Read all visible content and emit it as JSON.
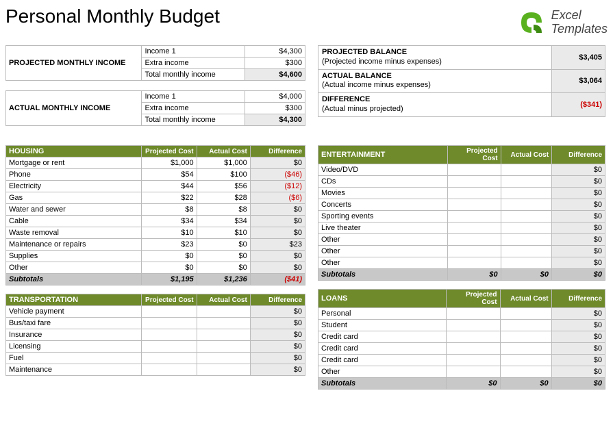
{
  "title": "Personal Monthly Budget",
  "logo": {
    "line1": "Excel",
    "line2": "Templates",
    "icon_color": "#5ab120"
  },
  "colors": {
    "category_header_bg": "#6e8a2a",
    "category_header_fg": "#ffffff",
    "diff_shade": "#eaeaea",
    "subtotal_bg": "#c8c8c8",
    "negative": "#cc0000",
    "border": "#bbbbbb"
  },
  "income": {
    "projected": {
      "label": "PROJECTED MONTHLY INCOME",
      "rows": [
        {
          "name": "Income 1",
          "value": "$4,300"
        },
        {
          "name": "Extra income",
          "value": "$300"
        }
      ],
      "total_label": "Total monthly income",
      "total_value": "$4,600"
    },
    "actual": {
      "label": "ACTUAL MONTHLY INCOME",
      "rows": [
        {
          "name": "Income 1",
          "value": "$4,000"
        },
        {
          "name": "Extra income",
          "value": "$300"
        }
      ],
      "total_label": "Total monthly income",
      "total_value": "$4,300"
    }
  },
  "balance": {
    "projected": {
      "label": "PROJECTED BALANCE",
      "sub": "(Projected income minus expenses)",
      "value": "$3,405"
    },
    "actual": {
      "label": "ACTUAL BALANCE",
      "sub": "(Actual income minus expenses)",
      "value": "$3,064"
    },
    "difference": {
      "label": "DIFFERENCE",
      "sub": "(Actual minus projected)",
      "value": "($341)",
      "negative": true
    }
  },
  "column_headers": {
    "projected": "Projected Cost",
    "actual": "Actual Cost",
    "difference": "Difference"
  },
  "categories_left": [
    {
      "name": "HOUSING",
      "rows": [
        {
          "label": "Mortgage or rent",
          "proj": "$1,000",
          "act": "$1,000",
          "diff": "$0"
        },
        {
          "label": "Phone",
          "proj": "$54",
          "act": "$100",
          "diff": "($46)",
          "neg": true
        },
        {
          "label": "Electricity",
          "proj": "$44",
          "act": "$56",
          "diff": "($12)",
          "neg": true
        },
        {
          "label": "Gas",
          "proj": "$22",
          "act": "$28",
          "diff": "($6)",
          "neg": true
        },
        {
          "label": "Water and sewer",
          "proj": "$8",
          "act": "$8",
          "diff": "$0"
        },
        {
          "label": "Cable",
          "proj": "$34",
          "act": "$34",
          "diff": "$0"
        },
        {
          "label": "Waste removal",
          "proj": "$10",
          "act": "$10",
          "diff": "$0"
        },
        {
          "label": "Maintenance or repairs",
          "proj": "$23",
          "act": "$0",
          "diff": "$23"
        },
        {
          "label": "Supplies",
          "proj": "$0",
          "act": "$0",
          "diff": "$0"
        },
        {
          "label": "Other",
          "proj": "$0",
          "act": "$0",
          "diff": "$0"
        }
      ],
      "subtotal": {
        "label": "Subtotals",
        "proj": "$1,195",
        "act": "$1,236",
        "diff": "($41)",
        "neg": true
      }
    },
    {
      "name": "TRANSPORTATION",
      "rows": [
        {
          "label": "Vehicle payment",
          "proj": "",
          "act": "",
          "diff": "$0"
        },
        {
          "label": "Bus/taxi fare",
          "proj": "",
          "act": "",
          "diff": "$0"
        },
        {
          "label": "Insurance",
          "proj": "",
          "act": "",
          "diff": "$0"
        },
        {
          "label": "Licensing",
          "proj": "",
          "act": "",
          "diff": "$0"
        },
        {
          "label": "Fuel",
          "proj": "",
          "act": "",
          "diff": "$0"
        },
        {
          "label": "Maintenance",
          "proj": "",
          "act": "",
          "diff": "$0"
        }
      ]
    }
  ],
  "categories_right": [
    {
      "name": "ENTERTAINMENT",
      "rows": [
        {
          "label": "Video/DVD",
          "proj": "",
          "act": "",
          "diff": "$0"
        },
        {
          "label": "CDs",
          "proj": "",
          "act": "",
          "diff": "$0"
        },
        {
          "label": "Movies",
          "proj": "",
          "act": "",
          "diff": "$0"
        },
        {
          "label": "Concerts",
          "proj": "",
          "act": "",
          "diff": "$0"
        },
        {
          "label": "Sporting events",
          "proj": "",
          "act": "",
          "diff": "$0"
        },
        {
          "label": "Live theater",
          "proj": "",
          "act": "",
          "diff": "$0"
        },
        {
          "label": "Other",
          "proj": "",
          "act": "",
          "diff": "$0"
        },
        {
          "label": "Other",
          "proj": "",
          "act": "",
          "diff": "$0"
        },
        {
          "label": "Other",
          "proj": "",
          "act": "",
          "diff": "$0"
        }
      ],
      "subtotal": {
        "label": "Subtotals",
        "proj": "$0",
        "act": "$0",
        "diff": "$0"
      }
    },
    {
      "name": "LOANS",
      "rows": [
        {
          "label": "Personal",
          "proj": "",
          "act": "",
          "diff": "$0"
        },
        {
          "label": "Student",
          "proj": "",
          "act": "",
          "diff": "$0"
        },
        {
          "label": "Credit card",
          "proj": "",
          "act": "",
          "diff": "$0"
        },
        {
          "label": "Credit card",
          "proj": "",
          "act": "",
          "diff": "$0"
        },
        {
          "label": "Credit card",
          "proj": "",
          "act": "",
          "diff": "$0"
        },
        {
          "label": "Other",
          "proj": "",
          "act": "",
          "diff": "$0"
        }
      ],
      "subtotal": {
        "label": "Subtotals",
        "proj": "$0",
        "act": "$0",
        "diff": "$0"
      }
    }
  ]
}
